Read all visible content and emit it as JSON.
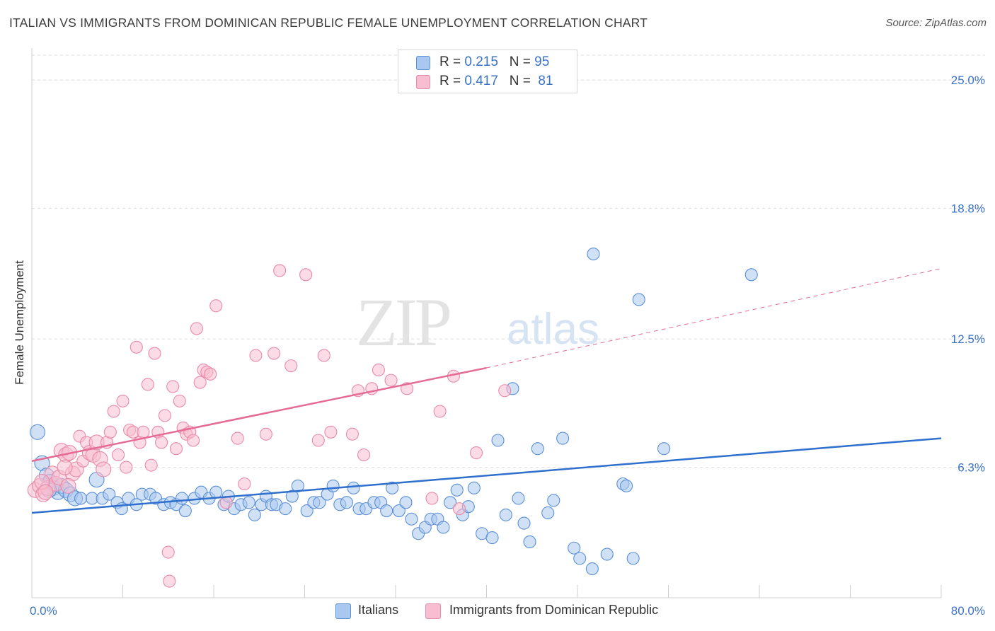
{
  "header": {
    "title": "ITALIAN VS IMMIGRANTS FROM DOMINICAN REPUBLIC FEMALE UNEMPLOYMENT CORRELATION CHART",
    "source": "Source: ZipAtlas.com"
  },
  "watermark": {
    "zip": "ZIP",
    "atlas": "atlas"
  },
  "legend_top": {
    "rows": [
      {
        "r_label": "R = ",
        "r_value": "0.215",
        "n_label": "N = ",
        "n_value": "95"
      },
      {
        "r_label": "R = ",
        "r_value": "0.417",
        "n_label": "N = ",
        "n_value": "81"
      }
    ]
  },
  "legend_bottom": {
    "series1": "Italians",
    "series2": "Immigrants from Dominican Republic"
  },
  "colors": {
    "blue_fill": "#a9c8ef",
    "blue_stroke": "#5b8fd6",
    "blue_line": "#2f6fcd",
    "pink_fill": "#f7bdd0",
    "pink_stroke": "#e98aa9",
    "pink_line": "#e56a96",
    "tick_label": "#3a72c4",
    "grid": "#dcdcdc"
  },
  "chart_data": {
    "type": "scatter",
    "title": "ITALIAN VS IMMIGRANTS FROM DOMINICAN REPUBLIC FEMALE UNEMPLOYMENT CORRELATION CHART",
    "xlabel": "",
    "ylabel": "Female Unemployment",
    "xlim": [
      0,
      80
    ],
    "ylim": [
      0,
      26.2
    ],
    "x_tick_labels": [
      "0.0%",
      "80.0%"
    ],
    "y_ticks": [
      6.3,
      12.5,
      18.8,
      25.0
    ],
    "y_tick_labels": [
      "6.3%",
      "12.5%",
      "18.8%",
      "25.0%"
    ],
    "grid": true,
    "legend_position": "top-center",
    "series": [
      {
        "name": "Italians",
        "r": 0.215,
        "n": 95,
        "trend": {
          "x": [
            0,
            80
          ],
          "y": [
            4.1,
            7.7
          ]
        },
        "points": [
          [
            0.5,
            8.0
          ],
          [
            0.9,
            6.5
          ],
          [
            1.3,
            5.9
          ],
          [
            1.6,
            5.6
          ],
          [
            1.9,
            5.3
          ],
          [
            2.3,
            5.1
          ],
          [
            2.6,
            5.4
          ],
          [
            3.0,
            5.2
          ],
          [
            3.4,
            5.0
          ],
          [
            3.8,
            4.8
          ],
          [
            4.3,
            4.8
          ],
          [
            5.3,
            4.8
          ],
          [
            5.7,
            5.7
          ],
          [
            6.2,
            4.8
          ],
          [
            6.8,
            5.0
          ],
          [
            7.5,
            4.6
          ],
          [
            7.9,
            4.3
          ],
          [
            8.5,
            4.8
          ],
          [
            9.2,
            4.5
          ],
          [
            9.7,
            5.0
          ],
          [
            10.4,
            5.0
          ],
          [
            10.9,
            4.8
          ],
          [
            11.6,
            4.5
          ],
          [
            12.2,
            4.6
          ],
          [
            12.7,
            4.5
          ],
          [
            13.2,
            4.8
          ],
          [
            13.5,
            4.2
          ],
          [
            14.3,
            4.8
          ],
          [
            14.9,
            5.1
          ],
          [
            15.6,
            4.8
          ],
          [
            16.2,
            5.1
          ],
          [
            16.9,
            4.5
          ],
          [
            17.3,
            4.9
          ],
          [
            17.8,
            4.3
          ],
          [
            18.4,
            4.5
          ],
          [
            19.1,
            4.6
          ],
          [
            19.6,
            4.0
          ],
          [
            20.2,
            4.5
          ],
          [
            20.6,
            4.9
          ],
          [
            21.1,
            4.5
          ],
          [
            21.5,
            4.5
          ],
          [
            22.3,
            4.3
          ],
          [
            22.9,
            4.9
          ],
          [
            23.4,
            5.4
          ],
          [
            24.2,
            4.2
          ],
          [
            24.8,
            4.6
          ],
          [
            25.3,
            4.6
          ],
          [
            26.0,
            5.0
          ],
          [
            26.5,
            5.4
          ],
          [
            27.1,
            4.5
          ],
          [
            27.7,
            4.6
          ],
          [
            28.3,
            5.3
          ],
          [
            28.8,
            4.3
          ],
          [
            29.4,
            4.3
          ],
          [
            30.1,
            4.6
          ],
          [
            30.7,
            4.6
          ],
          [
            31.2,
            4.2
          ],
          [
            31.7,
            5.3
          ],
          [
            32.3,
            4.2
          ],
          [
            32.9,
            4.6
          ],
          [
            33.4,
            3.8
          ],
          [
            34.0,
            3.1
          ],
          [
            34.6,
            3.4
          ],
          [
            35.1,
            3.8
          ],
          [
            35.7,
            3.8
          ],
          [
            36.2,
            3.4
          ],
          [
            36.8,
            4.6
          ],
          [
            37.4,
            5.2
          ],
          [
            37.9,
            4.0
          ],
          [
            38.4,
            4.4
          ],
          [
            38.9,
            5.3
          ],
          [
            39.6,
            3.1
          ],
          [
            40.5,
            2.9
          ],
          [
            41.0,
            7.6
          ],
          [
            41.7,
            4.0
          ],
          [
            42.3,
            10.1
          ],
          [
            42.8,
            4.8
          ],
          [
            43.3,
            3.6
          ],
          [
            43.8,
            2.7
          ],
          [
            44.5,
            7.2
          ],
          [
            45.4,
            4.1
          ],
          [
            45.9,
            4.7
          ],
          [
            46.7,
            7.7
          ],
          [
            47.7,
            2.4
          ],
          [
            48.2,
            1.9
          ],
          [
            49.3,
            1.4
          ],
          [
            49.4,
            16.6
          ],
          [
            50.6,
            2.1
          ],
          [
            52.0,
            5.5
          ],
          [
            52.3,
            5.4
          ],
          [
            52.9,
            1.9
          ],
          [
            53.4,
            14.4
          ],
          [
            55.6,
            7.2
          ],
          [
            63.3,
            15.6
          ],
          [
            1.5,
            5.2
          ]
        ],
        "sizes_note": "larger markers near x<4"
      },
      {
        "name": "Immigrants from Dominican Republic",
        "r": 0.417,
        "n": 81,
        "trend": {
          "x": [
            0,
            40
          ],
          "y": [
            6.6,
            11.1
          ]
        },
        "trend_dashed": {
          "x": [
            40,
            80
          ],
          "y": [
            11.1,
            15.9
          ]
        },
        "points": [
          [
            0.3,
            5.2
          ],
          [
            0.7,
            5.4
          ],
          [
            1.0,
            5.0
          ],
          [
            1.4,
            5.3
          ],
          [
            1.8,
            6.0
          ],
          [
            2.1,
            5.5
          ],
          [
            2.4,
            5.8
          ],
          [
            2.6,
            7.1
          ],
          [
            3.0,
            6.9
          ],
          [
            3.3,
            7.0
          ],
          [
            3.6,
            6.0
          ],
          [
            3.9,
            6.2
          ],
          [
            4.2,
            7.8
          ],
          [
            4.5,
            6.6
          ],
          [
            4.8,
            7.5
          ],
          [
            5.1,
            7.0
          ],
          [
            5.4,
            6.9
          ],
          [
            5.7,
            7.5
          ],
          [
            6.0,
            6.7
          ],
          [
            6.3,
            6.2
          ],
          [
            6.6,
            7.5
          ],
          [
            6.9,
            8.0
          ],
          [
            7.2,
            9.0
          ],
          [
            7.6,
            6.9
          ],
          [
            8.0,
            9.5
          ],
          [
            8.3,
            6.3
          ],
          [
            8.6,
            8.1
          ],
          [
            8.9,
            8.0
          ],
          [
            9.2,
            12.1
          ],
          [
            9.5,
            7.5
          ],
          [
            9.8,
            8.0
          ],
          [
            10.2,
            10.3
          ],
          [
            10.5,
            6.4
          ],
          [
            10.8,
            11.8
          ],
          [
            11.1,
            8.0
          ],
          [
            11.4,
            7.5
          ],
          [
            11.7,
            8.8
          ],
          [
            12.0,
            2.2
          ],
          [
            12.1,
            0.8
          ],
          [
            12.4,
            10.2
          ],
          [
            12.7,
            7.2
          ],
          [
            13.0,
            9.5
          ],
          [
            13.3,
            8.2
          ],
          [
            13.6,
            7.9
          ],
          [
            13.9,
            8.0
          ],
          [
            14.2,
            7.6
          ],
          [
            14.5,
            13.0
          ],
          [
            14.8,
            10.4
          ],
          [
            15.1,
            11.0
          ],
          [
            15.4,
            10.9
          ],
          [
            15.7,
            10.8
          ],
          [
            16.2,
            14.1
          ],
          [
            17.1,
            4.6
          ],
          [
            18.1,
            7.7
          ],
          [
            18.7,
            5.5
          ],
          [
            19.7,
            11.7
          ],
          [
            20.6,
            7.9
          ],
          [
            21.3,
            11.8
          ],
          [
            21.8,
            15.8
          ],
          [
            22.8,
            11.2
          ],
          [
            24.1,
            15.6
          ],
          [
            25.2,
            7.6
          ],
          [
            25.7,
            11.7
          ],
          [
            26.3,
            8.0
          ],
          [
            28.2,
            7.9
          ],
          [
            28.7,
            10.0
          ],
          [
            29.2,
            6.9
          ],
          [
            29.9,
            10.1
          ],
          [
            30.5,
            11.0
          ],
          [
            31.6,
            10.5
          ],
          [
            33.0,
            10.1
          ],
          [
            35.2,
            4.8
          ],
          [
            35.9,
            9.0
          ],
          [
            37.1,
            10.7
          ],
          [
            37.6,
            4.3
          ],
          [
            39.1,
            7.0
          ],
          [
            41.6,
            10.0
          ],
          [
            0.9,
            5.6
          ],
          [
            1.2,
            5.1
          ],
          [
            2.9,
            6.3
          ],
          [
            3.2,
            5.4
          ]
        ]
      }
    ]
  }
}
